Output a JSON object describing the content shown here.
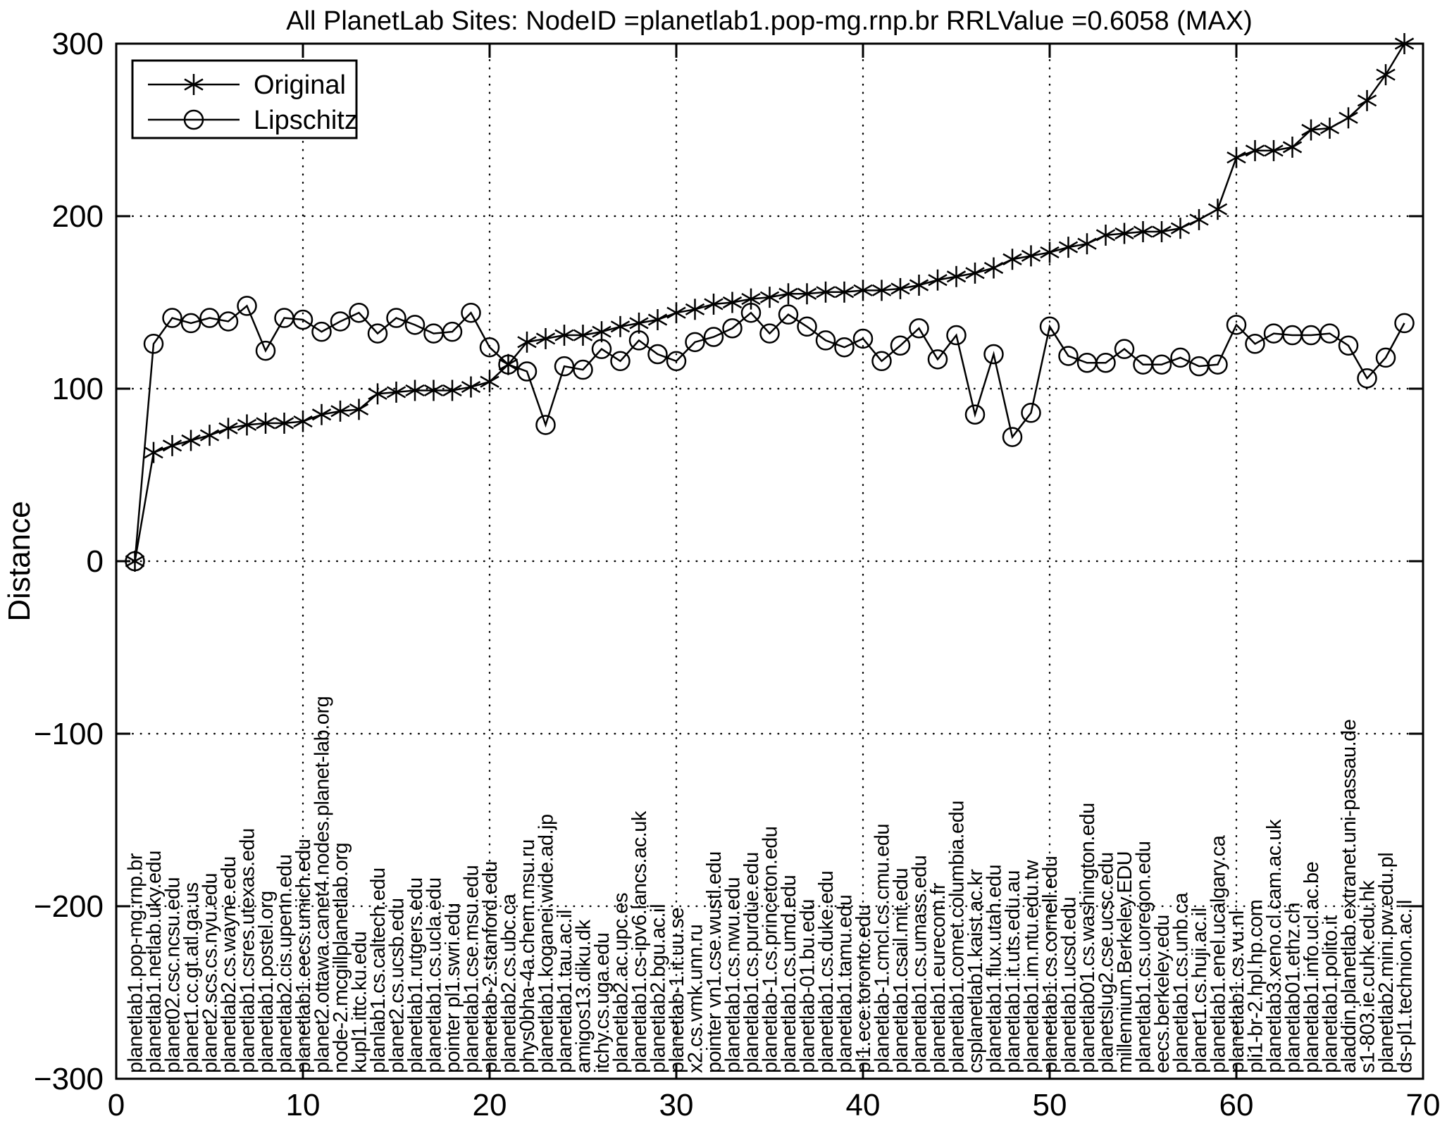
{
  "figure": {
    "background": "#ffffff",
    "foreground": "#000000"
  },
  "chart_data": {
    "type": "line",
    "title": "All PlanetLab Sites: NodeID =planetlab1.pop-mg.rnp.br   RRLValue =0.6058 (MAX)",
    "xlabel": "",
    "ylabel": "Distance",
    "xlim": [
      0,
      70
    ],
    "ylim": [
      -300,
      300
    ],
    "grid": true,
    "legend_position": "top-left",
    "xticks": [
      0,
      10,
      20,
      30,
      40,
      50,
      60,
      70
    ],
    "xtick_labels": [
      "0",
      "10",
      "20",
      "30",
      "40",
      "50",
      "60",
      "70"
    ],
    "yticks": [
      -300,
      -200,
      -100,
      0,
      100,
      200,
      300
    ],
    "ytick_labels": [
      "−300",
      "−200",
      "−100",
      "0",
      "100",
      "200",
      "300"
    ],
    "x": [
      1,
      2,
      3,
      4,
      5,
      6,
      7,
      8,
      9,
      10,
      11,
      12,
      13,
      14,
      15,
      16,
      17,
      18,
      19,
      20,
      21,
      22,
      23,
      24,
      25,
      26,
      27,
      28,
      29,
      30,
      31,
      32,
      33,
      34,
      35,
      36,
      37,
      38,
      39,
      40,
      41,
      42,
      43,
      44,
      45,
      46,
      47,
      48,
      49,
      50,
      51,
      52,
      53,
      54,
      55,
      56,
      57,
      58,
      59,
      60,
      61,
      62,
      63,
      64,
      65,
      66,
      67,
      68,
      69
    ],
    "site_labels": [
      "planetlab1.pop-mg.rnp.br",
      "planetlab1.netlab.uky.edu",
      "planet02.csc.ncsu.edu",
      "planet1.cc.gt.atl.ga.us",
      "planet2.scs.cs.nyu.edu",
      "planetlab2.cs.wayne.edu",
      "planetlab1.csres.utexas.edu",
      "planetlab1.postel.org",
      "planetlab2.cis.upenn.edu",
      "planetlab1.eecs.umich.edu",
      "planet2.ottawa.canet4.nodes.planet-lab.org",
      "node-2.mcgillplanetlab.org",
      "kupl1.ittc.ku.edu",
      "planlab1.cs.caltech.edu",
      "planet2.cs.ucsb.edu",
      "planetlab1.rutgers.edu",
      "planetlab1.cs.ucla.edu",
      "pointer pl1.swri.edu",
      "planetlab1.cse.msu.edu",
      "planetlab-2.stanford.edu",
      "planetlab2.cs.ubc.ca",
      "phys0bha-4a.chem.msu.ru",
      "planetlab1.koganei.wide.ad.jp",
      "planetlab1.tau.ac.il",
      "amigos13.diku.dk",
      "itchy.cs.uga.edu",
      "planetlab2.ac.upc.es",
      "planetlab1.cs-ipv6.lancs.ac.uk",
      "planetlab2.bgu.ac.il",
      "planetlab-1.it.uu.se",
      "x2.cs.vmk.unn.ru",
      "pointer vn1.cse.wustl.edu",
      "planetlab1.cs.nwu.edu",
      "planetlab1.cs.purdue.edu",
      "planetlab-1.cs.princeton.edu",
      "planetlab1.cs.umd.edu",
      "planetlab-01.bu.edu",
      "planetlab1.cs.duke.edu",
      "planetlab1.tamu.edu",
      "pl1.ece.toronto.edu",
      "planetlab-1.cmcl.cs.cmu.edu",
      "planetlab1.csail.mit.edu",
      "planetlab1.cs.umass.edu",
      "planetlab1.eurecom.fr",
      "planetlab1.comet.columbia.edu",
      "csplanetlab1.kaist.ac.kr",
      "planetlab1.flux.utah.edu",
      "planetlab1.it.uts.edu.au",
      "planetlab1.im.ntu.edu.tw",
      "planetlab1.cs.cornell.edu",
      "planetlab1.ucsd.edu",
      "planetlab01.cs.washington.edu",
      "planetslug2.cse.ucsc.edu",
      "millennium.Berkeley.EDU",
      "planetlab1.cs.uoregon.edu",
      "eecs.berkeley.edu",
      "planetlab1.cs.unb.ca",
      "planet1.cs.huji.ac.il",
      "planetlab1.enel.ucalgary.ca",
      "planetlab1.cs.vu.nl",
      "pli1-br-2.hpl.hp.com",
      "planetlab3.xeno.cl.cam.ac.uk",
      "planetlab01.ethz.ch",
      "planetlab1.info.ucl.ac.be",
      "planetlab1.polito.it",
      "aladdin.planetlab.extranet.uni-passau.de",
      "s1-803.ie.cuhk.edu.hk",
      "planetlab2.mini.pw.edu.pl",
      "ds-pl1.technion.ac.il"
    ],
    "series": [
      {
        "name": "Original",
        "marker": "asterisk",
        "color": "#000000",
        "values": [
          0,
          63,
          67,
          70,
          73,
          77,
          79,
          80,
          80,
          81,
          85,
          87,
          88,
          97,
          98,
          99,
          99,
          99,
          101,
          104,
          114,
          127,
          129,
          131,
          131,
          133,
          136,
          138,
          140,
          144,
          146,
          149,
          150,
          152,
          153,
          155,
          155,
          156,
          156,
          157,
          157,
          158,
          160,
          163,
          165,
          167,
          170,
          175,
          177,
          179,
          182,
          184,
          189,
          190,
          191,
          191,
          193,
          198,
          204,
          234,
          238,
          238,
          240,
          250,
          251,
          257,
          267,
          282,
          300
        ]
      },
      {
        "name": "Lipschitz",
        "marker": "circle",
        "color": "#000000",
        "values": [
          0,
          126,
          141,
          138,
          141,
          139,
          148,
          122,
          141,
          140,
          133,
          139,
          144,
          132,
          141,
          137,
          132,
          133,
          144,
          124,
          114,
          110,
          79,
          113,
          111,
          123,
          116,
          128,
          120,
          116,
          127,
          130,
          135,
          144,
          132,
          143,
          136,
          128,
          124,
          129,
          116,
          125,
          135,
          117,
          131,
          85,
          120,
          72,
          86,
          136,
          119,
          115,
          115,
          123,
          114,
          114,
          118,
          113,
          114,
          137,
          126,
          132,
          131,
          131,
          132,
          125,
          106,
          118,
          138
        ]
      }
    ]
  }
}
